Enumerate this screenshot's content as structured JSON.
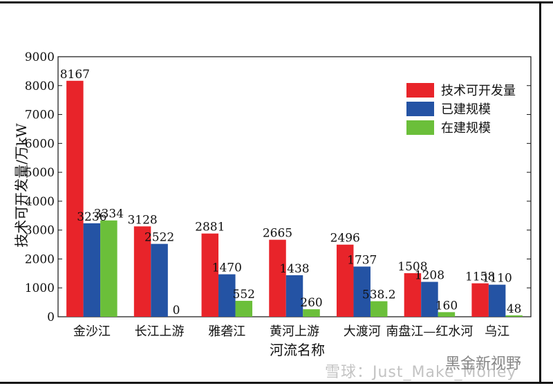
{
  "chart_data": {
    "type": "bar",
    "categories": [
      "金沙江",
      "长江上游",
      "雅砻江",
      "黄河上游",
      "大渡河",
      "南盘江—红水河",
      "乌江"
    ],
    "series": [
      {
        "name": "技术可开发量",
        "color": "#e8242a",
        "values": [
          8167,
          3128,
          2881,
          2665,
          2496,
          1508,
          1158
        ],
        "labels": [
          "8167",
          "3128",
          "2881",
          "2665",
          "2496",
          "1508",
          "1158"
        ]
      },
      {
        "name": "已建规模",
        "color": "#2453a4",
        "values": [
          3236,
          2522,
          1470,
          1438,
          1737,
          1208,
          1110
        ],
        "labels": [
          "3236",
          "2522",
          "1470",
          "1438",
          "1737",
          "1208",
          "1110"
        ]
      },
      {
        "name": "在建规模",
        "color": "#6bbf3a",
        "values": [
          3334,
          0,
          552,
          260,
          538.2,
          160,
          48
        ],
        "labels": [
          "3334",
          "0",
          "552",
          "260",
          "538.2",
          "160",
          "48"
        ]
      }
    ],
    "xlabel": "河流名称",
    "ylabel": "技术可开发量/万kW",
    "ylim": [
      0,
      9000
    ],
    "yticks": [
      0,
      1000,
      2000,
      3000,
      4000,
      5000,
      6000,
      7000,
      8000,
      9000
    ],
    "legend_position": "top-right",
    "grid": false
  },
  "watermark": {
    "left": "雪球：Just_Make_Money",
    "right": "黑金新视野"
  }
}
